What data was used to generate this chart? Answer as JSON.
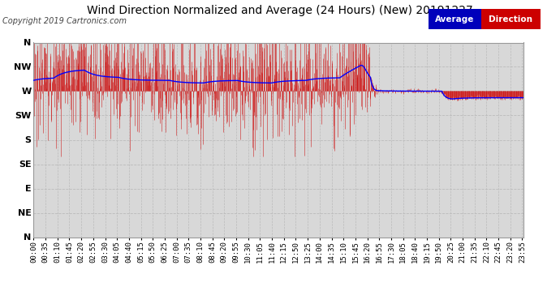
{
  "title": "Wind Direction Normalized and Average (24 Hours) (New) 20191227",
  "copyright": "Copyright 2019 Cartronics.com",
  "bg_color": "#ffffff",
  "plot_bg_color": "#d8d8d8",
  "grid_color": "#bbbbbb",
  "y_labels": [
    "N",
    "NW",
    "W",
    "SW",
    "S",
    "SE",
    "E",
    "NE",
    "N"
  ],
  "y_ticks": [
    360,
    315,
    270,
    225,
    180,
    135,
    90,
    45,
    0
  ],
  "ylim": [
    0,
    360
  ],
  "bar_color": "#cc0000",
  "avg_line_color": "#0000ff",
  "legend_avg_bg": "#0000bb",
  "legend_dir_bg": "#cc0000",
  "title_fontsize": 10,
  "copyright_fontsize": 7,
  "tick_fontsize": 6.5,
  "ylabel_fontsize": 8
}
